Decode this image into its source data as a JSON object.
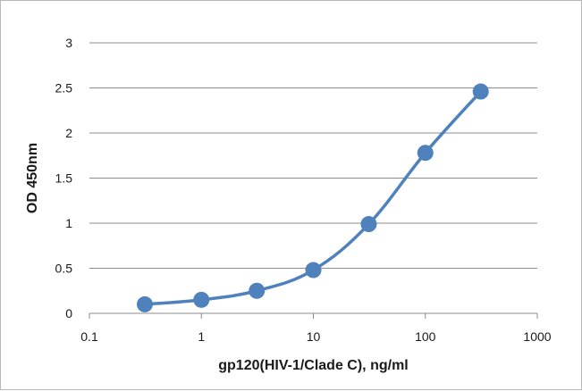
{
  "chart_data": {
    "type": "line",
    "title": "",
    "xlabel": "gp120(HIV-1/Clade C),  ng/ml",
    "ylabel": "OD 450nm",
    "x_scale": "log",
    "xlim": [
      0.1,
      1000
    ],
    "ylim": [
      0,
      3
    ],
    "x_ticks": [
      0.1,
      1,
      10,
      100,
      1000
    ],
    "x_tick_labels": [
      "0.1",
      "1",
      "10",
      "100",
      "1000"
    ],
    "y_ticks": [
      0,
      0.5,
      1,
      1.5,
      2,
      2.5,
      3
    ],
    "y_tick_labels": [
      "0",
      "0.5",
      "1",
      "1.5",
      "2",
      "2.5",
      "3"
    ],
    "grid": "horizontal",
    "legend": "none",
    "smooth": true,
    "series": [
      {
        "color": "#4f81bd",
        "marker": "circle",
        "points": [
          {
            "x": 0.3125,
            "y": 0.1
          },
          {
            "x": 1,
            "y": 0.15
          },
          {
            "x": 3.125,
            "y": 0.25
          },
          {
            "x": 10,
            "y": 0.48
          },
          {
            "x": 31.25,
            "y": 0.99
          },
          {
            "x": 100,
            "y": 1.78
          },
          {
            "x": 312.5,
            "y": 2.46
          }
        ]
      }
    ]
  }
}
